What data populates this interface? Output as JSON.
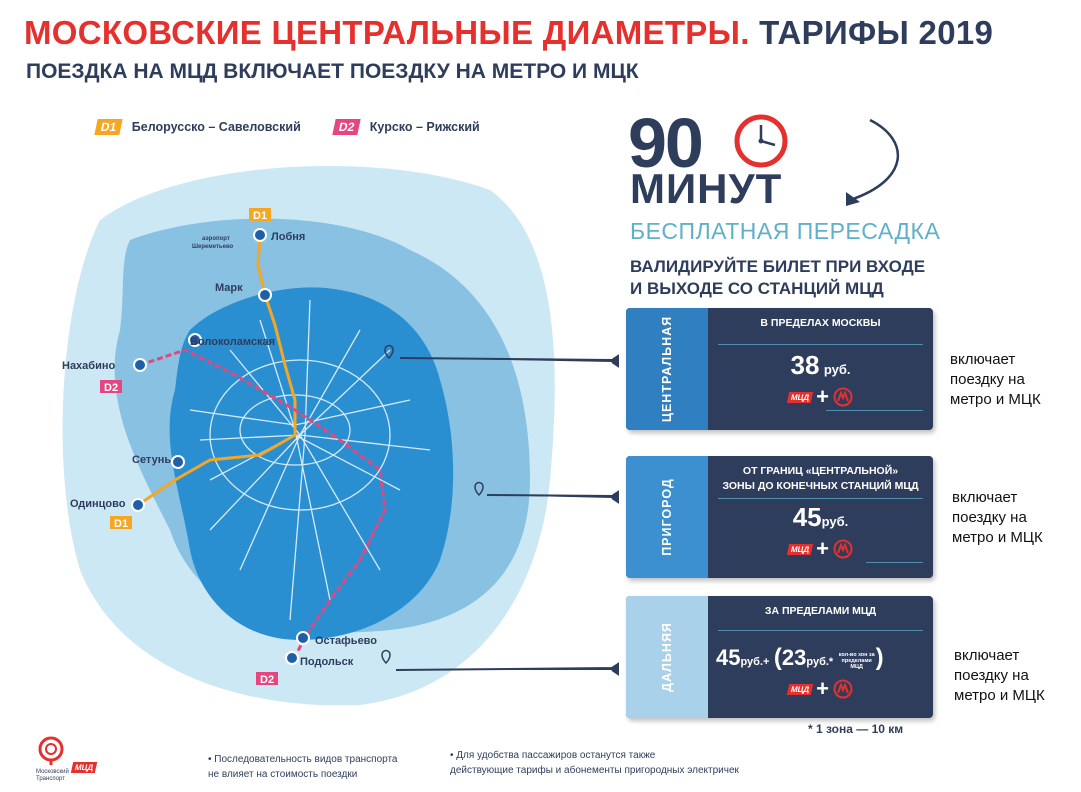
{
  "header": {
    "title_red": "МОСКОВСКИЕ ЦЕНТРАЛЬНЫЕ ДИАМЕТРЫ.",
    "title_dark": "ТАРИФЫ 2019",
    "subtitle": "ПОЕЗДКА НА МЦД ВКЛЮЧАЕТ ПОЕЗДКУ НА МЕТРО И МЦК"
  },
  "legend": [
    {
      "badge": "D1",
      "name": "Белорусско – Савеловский",
      "color": "#f5a623"
    },
    {
      "badge": "D2",
      "name": "Курско – Рижский",
      "color": "#e5467f"
    }
  ],
  "map": {
    "stations": {
      "lobnya": "Лобня",
      "sheremetyevo_1": "аэропорт",
      "sheremetyevo_2": "Шереметьево",
      "mark": "Марк",
      "volokolamskaya": "Волоколамская",
      "nakhabino": "Нахабино",
      "setun": "Сетунь",
      "odintsovo": "Одинцово",
      "ostafyevo": "Остафьево",
      "podolsk": "Подольск"
    },
    "badges": {
      "d1": "D1",
      "d2": "D2"
    },
    "colors": {
      "d1": "#f5a623",
      "d2": "#e5467f",
      "outer": "#c5e4f3",
      "middle": "#7fbbe0",
      "center": "#2a8fd1"
    }
  },
  "promo": {
    "big_number": "90",
    "minutes": "МИНУТ",
    "free_transfer": "БЕСПЛАТНАЯ ПЕРЕСАДКА",
    "validate_line1": "ВАЛИДИРУЙТЕ БИЛЕТ ПРИ ВХОДЕ",
    "validate_line2": "И ВЫХОДЕ СО СТАНЦИЙ МЦД",
    "icons": [
      "clock-icon",
      "arrow-icon"
    ]
  },
  "zones": [
    {
      "side": "ЦЕНТРАЛЬНАЯ",
      "side_color": "#2f7fc1",
      "head_1": "В ПРЕДЕЛАХ МОСКВЫ",
      "head_2": "",
      "price": "38",
      "rub": "руб.",
      "mcd": "МЦД",
      "includes_1": "включает",
      "includes_2": "поездку на",
      "includes_3": "метро и МЦК"
    },
    {
      "side": "ПРИГОРОД",
      "side_color": "#3d90cf",
      "head_1": "ОТ ГРАНИЦ «ЦЕНТРАЛЬНОЙ»",
      "head_2": "ЗОНЫ ДО КОНЕЧНЫХ СТАНЦИЙ МЦД",
      "price": "45",
      "rub": "руб.",
      "mcd": "МЦД",
      "includes_1": "включает",
      "includes_2": "поездку на",
      "includes_3": "метро и МЦК"
    },
    {
      "side": "ДАЛЬНЯЯ",
      "side_color": "#a9d2ea",
      "head_1": "ЗА ПРЕДЕЛАМИ МЦД",
      "head_2": "",
      "price": "45",
      "rub": "руб.+",
      "extra_price": "23",
      "extra_rub": "руб.*",
      "extra_note_1": "кол-во зон за",
      "extra_note_2": "пределами",
      "extra_note_3": "МЦД",
      "mcd": "МЦД",
      "includes_1": "включает",
      "includes_2": "поездку на",
      "includes_3": "метро и МЦК"
    }
  ],
  "footnote": "* 1 зона — 10 км",
  "notes": {
    "left_1": "• Последовательность видов транспорта",
    "left_2": "не влияет на стоимость поездки",
    "right_1": "• Для удобства пассажиров останутся также",
    "right_2": "действующие тарифы  и абонементы пригородных электричек"
  },
  "logo": {
    "line1": "Московский",
    "line2": "Транспорт",
    "mcd": "МЦД"
  }
}
